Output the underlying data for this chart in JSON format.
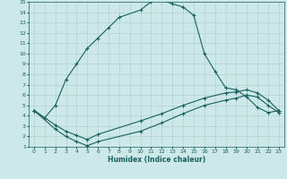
{
  "xlabel": "Humidex (Indice chaleur)",
  "xlim": [
    -0.5,
    23.5
  ],
  "ylim": [
    1,
    15
  ],
  "yticks": [
    1,
    2,
    3,
    4,
    5,
    6,
    7,
    8,
    9,
    10,
    11,
    12,
    13,
    14,
    15
  ],
  "xticks": [
    0,
    1,
    2,
    3,
    4,
    5,
    6,
    7,
    8,
    9,
    10,
    11,
    12,
    13,
    14,
    15,
    16,
    17,
    18,
    19,
    20,
    21,
    22,
    23
  ],
  "background_color": "#cce8e8",
  "grid_color": "#aacccc",
  "line_color": "#1a6060",
  "line1_x": [
    0,
    1,
    2,
    3,
    4,
    5,
    6,
    7,
    8,
    10,
    11,
    12,
    13,
    14,
    15,
    16,
    17,
    18,
    19,
    20,
    21,
    22,
    23
  ],
  "line1_y": [
    4.5,
    3.8,
    5.0,
    7.5,
    9.0,
    10.5,
    11.5,
    12.5,
    13.5,
    14.2,
    15.0,
    15.2,
    14.8,
    14.5,
    13.7,
    10.0,
    8.3,
    6.7,
    6.5,
    5.8,
    4.8,
    4.3,
    4.5
  ],
  "line2_x": [
    0,
    2,
    3,
    4,
    5,
    6,
    10,
    12,
    14,
    16,
    18,
    19,
    20,
    21,
    22,
    23
  ],
  "line2_y": [
    4.5,
    3.1,
    2.5,
    2.1,
    1.7,
    2.2,
    3.5,
    4.2,
    5.0,
    5.7,
    6.2,
    6.3,
    6.5,
    6.2,
    5.5,
    4.5
  ],
  "line3_x": [
    0,
    2,
    3,
    4,
    5,
    6,
    10,
    12,
    14,
    16,
    18,
    19,
    20,
    21,
    22,
    23
  ],
  "line3_y": [
    4.5,
    2.7,
    2.0,
    1.5,
    1.1,
    1.5,
    2.5,
    3.3,
    4.2,
    5.0,
    5.5,
    5.7,
    6.0,
    5.8,
    5.0,
    4.3
  ]
}
